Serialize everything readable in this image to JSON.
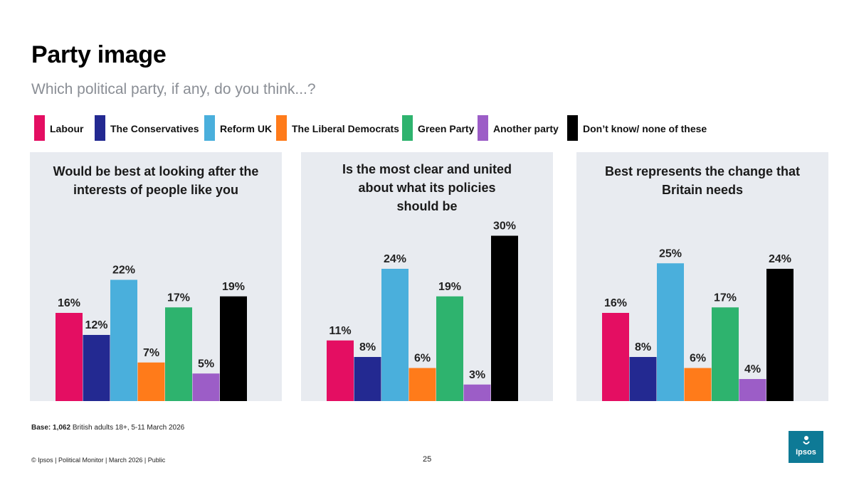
{
  "header": {
    "title": "Party image",
    "subtitle": "Which political party, if any, do you think...?"
  },
  "legend": [
    {
      "label": "Labour",
      "color": "#e40e62"
    },
    {
      "label": "The Conservatives",
      "color": "#232991"
    },
    {
      "label": "Reform UK",
      "color": "#4aafdc"
    },
    {
      "label": "The Liberal Democrats",
      "color": "#ff7b1a"
    },
    {
      "label": "Green Party",
      "color": "#2eb36e"
    },
    {
      "label": "Another party",
      "color": "#9c5dc7"
    },
    {
      "label": "Don’t know/ none of these",
      "color": "#000000"
    }
  ],
  "chart_data": [
    {
      "type": "bar",
      "title": "Would be best at looking after the interests of people like you",
      "title_lines": [
        "Would be best at looking after the",
        "interests of people like you"
      ],
      "categories": [
        "Labour",
        "The Conservatives",
        "Reform UK",
        "The Liberal Democrats",
        "Green Party",
        "Another party",
        "Don’t know/ none of these"
      ],
      "values": [
        16,
        12,
        22,
        7,
        17,
        5,
        19
      ],
      "labels": [
        "16%",
        "12%",
        "22%",
        "7%",
        "17%",
        "5%",
        "19%"
      ],
      "ylim": [
        0,
        30
      ],
      "unit": "%"
    },
    {
      "type": "bar",
      "title": "Is the most clear and united about what its policies should be",
      "title_lines": [
        "Is the most clear and united",
        "about what its policies",
        "should be"
      ],
      "categories": [
        "Labour",
        "The Conservatives",
        "Reform UK",
        "The Liberal Democrats",
        "Green Party",
        "Another party",
        "Don’t know/ none of these"
      ],
      "values": [
        11,
        8,
        24,
        6,
        19,
        3,
        30
      ],
      "labels": [
        "11%",
        "8%",
        "24%",
        "6%",
        "19%",
        "3%",
        "30%"
      ],
      "ylim": [
        0,
        30
      ],
      "unit": "%"
    },
    {
      "type": "bar",
      "title": "Best represents the change that Britain needs",
      "title_lines": [
        "Best represents the change that",
        "Britain needs"
      ],
      "categories": [
        "Labour",
        "The Conservatives",
        "Reform UK",
        "The Liberal Democrats",
        "Green Party",
        "Another party",
        "Don’t know/ none of these"
      ],
      "values": [
        16,
        8,
        25,
        6,
        17,
        4,
        24
      ],
      "labels": [
        "16%",
        "8%",
        "25%",
        "6%",
        "17%",
        "4%",
        "24%"
      ],
      "ylim": [
        0,
        30
      ],
      "unit": "%"
    }
  ],
  "base_note": {
    "bold": "Base: 1,062",
    "text": " British adults 18+, 5-11 March 2026"
  },
  "footer": {
    "left": "© Ipsos | Political Monitor | March 2026 | Public",
    "page_number": "25",
    "logo_text": "Ipsos"
  }
}
